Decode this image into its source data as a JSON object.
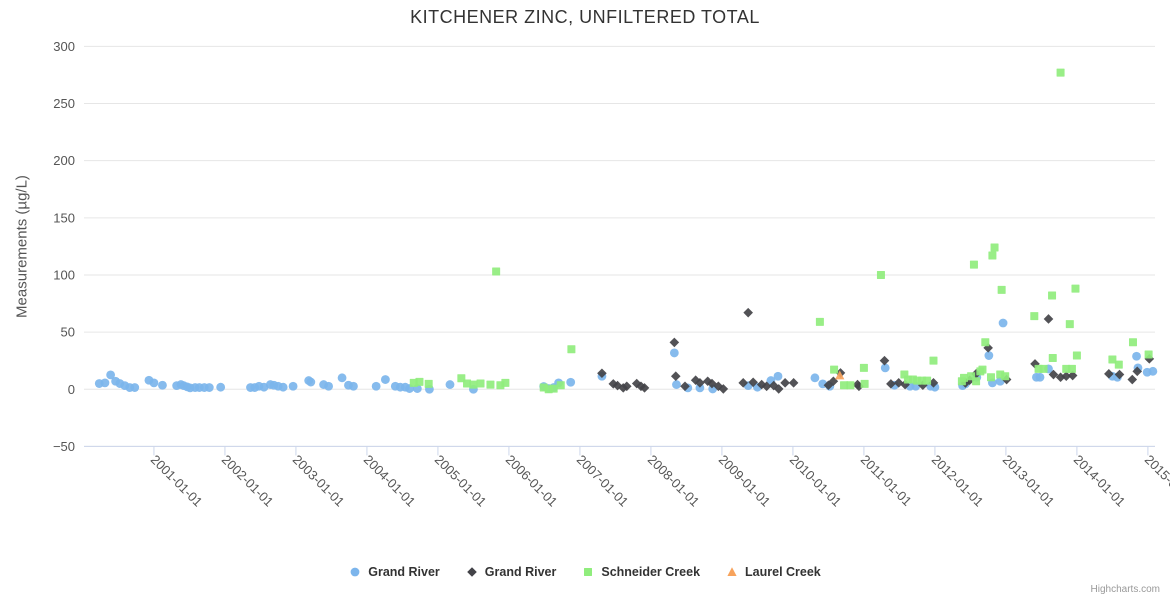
{
  "credits": "Highcharts.com",
  "chart_data": {
    "type": "scatter",
    "title": "KITCHENER ZINC, UNFILTERED TOTAL",
    "xlabel": "",
    "ylabel": "Measurements (µg/L)",
    "ylim": [
      -50,
      300
    ],
    "y_ticks": [
      -50,
      0,
      50,
      100,
      150,
      200,
      250,
      300
    ],
    "x_ticks": [
      "2001-01-01",
      "2002-01-01",
      "2003-01-01",
      "2004-01-01",
      "2005-01-01",
      "2006-01-01",
      "2007-01-01",
      "2008-01-01",
      "2009-01-01",
      "2010-01-01",
      "2011-01-01",
      "2012-01-01",
      "2013-01-01",
      "2014-01-01",
      "2015-01-01"
    ],
    "x_range_decimal_years": [
      2000.015,
      2015.1
    ],
    "grid": "horizontal-only",
    "legend_position": "bottom-center",
    "series": [
      {
        "name": "Grand River",
        "marker": "circle",
        "color": "#7cb5ec",
        "points": [
          [
            2000.23,
            5
          ],
          [
            2000.31,
            5.6
          ],
          [
            2000.39,
            12.6
          ],
          [
            2000.46,
            7
          ],
          [
            2000.52,
            5
          ],
          [
            2000.59,
            3.2
          ],
          [
            2000.66,
            1.5
          ],
          [
            2000.73,
            1.5
          ],
          [
            2000.93,
            7.9
          ],
          [
            2001.0,
            5.6
          ],
          [
            2001.12,
            3.5
          ],
          [
            2001.32,
            3.2
          ],
          [
            2001.38,
            4.1
          ],
          [
            2001.42,
            3.2
          ],
          [
            2001.47,
            2.1
          ],
          [
            2001.51,
            1.2
          ],
          [
            2001.58,
            1.5
          ],
          [
            2001.64,
            1.5
          ],
          [
            2001.71,
            1.5
          ],
          [
            2001.78,
            1.5
          ],
          [
            2001.94,
            1.8
          ],
          [
            2002.36,
            1.5
          ],
          [
            2002.42,
            1.5
          ],
          [
            2002.48,
            2.6
          ],
          [
            2002.55,
            1.8
          ],
          [
            2002.64,
            4.1
          ],
          [
            2002.69,
            3.5
          ],
          [
            2002.75,
            2.6
          ],
          [
            2002.82,
            1.8
          ],
          [
            2002.96,
            2.6
          ],
          [
            2003.18,
            7.6
          ],
          [
            2003.21,
            6.3
          ],
          [
            2003.39,
            4.1
          ],
          [
            2003.46,
            2.6
          ],
          [
            2003.65,
            10
          ],
          [
            2003.74,
            3.5
          ],
          [
            2003.81,
            2.6
          ],
          [
            2004.13,
            2.6
          ],
          [
            2004.26,
            8.5
          ],
          [
            2004.4,
            2.6
          ],
          [
            2004.47,
            1.8
          ],
          [
            2004.54,
            1.8
          ],
          [
            2004.6,
            0.6
          ],
          [
            2004.71,
            0.6
          ],
          [
            2004.88,
            0
          ],
          [
            2005.17,
            4.1
          ],
          [
            2005.5,
            0
          ],
          [
            2006.49,
            2.4
          ],
          [
            2006.56,
            0.6
          ],
          [
            2006.63,
            1.5
          ],
          [
            2006.7,
            5.6
          ],
          [
            2006.87,
            6.1
          ],
          [
            2007.31,
            11.4
          ],
          [
            2008.33,
            31.8
          ],
          [
            2008.36,
            4.1
          ],
          [
            2008.52,
            1.2
          ],
          [
            2008.69,
            1.2
          ],
          [
            2008.87,
            0.3
          ],
          [
            2009.37,
            3.2
          ],
          [
            2009.5,
            1.8
          ],
          [
            2009.69,
            7.6
          ],
          [
            2009.79,
            11.4
          ],
          [
            2010.31,
            10
          ],
          [
            2010.42,
            4.7
          ],
          [
            2010.52,
            2.6
          ],
          [
            2011.3,
            18.7
          ],
          [
            2011.43,
            3.5
          ],
          [
            2011.65,
            2.6
          ],
          [
            2011.73,
            2.6
          ],
          [
            2011.94,
            2.6
          ],
          [
            2012.0,
            1.8
          ],
          [
            2012.39,
            3.2
          ],
          [
            2012.43,
            4.7
          ],
          [
            2012.59,
            10.5
          ],
          [
            2012.76,
            29.5
          ],
          [
            2012.81,
            5.6
          ],
          [
            2012.92,
            7
          ],
          [
            2012.96,
            58
          ],
          [
            2013.43,
            10.5
          ],
          [
            2013.48,
            10.5
          ],
          [
            2013.6,
            17.8
          ],
          [
            2014.5,
            11.4
          ],
          [
            2014.57,
            10.5
          ],
          [
            2014.84,
            28.9
          ],
          [
            2014.86,
            18.7
          ],
          [
            2014.99,
            14.9
          ],
          [
            2015.07,
            15.7
          ]
        ]
      },
      {
        "name": "Grand River",
        "marker": "diamond",
        "color": "#434348",
        "points": [
          [
            2007.31,
            14
          ],
          [
            2007.47,
            4.7
          ],
          [
            2007.53,
            3.2
          ],
          [
            2007.61,
            1.2
          ],
          [
            2007.66,
            2.6
          ],
          [
            2007.8,
            5
          ],
          [
            2007.86,
            2.6
          ],
          [
            2007.91,
            1.2
          ],
          [
            2008.33,
            41
          ],
          [
            2008.35,
            11.4
          ],
          [
            2008.48,
            2.6
          ],
          [
            2008.63,
            7.9
          ],
          [
            2008.69,
            5.6
          ],
          [
            2008.8,
            7
          ],
          [
            2008.86,
            5
          ],
          [
            2008.95,
            2.6
          ],
          [
            2009.02,
            0.3
          ],
          [
            2009.3,
            5.6
          ],
          [
            2009.37,
            67
          ],
          [
            2009.44,
            6.1
          ],
          [
            2009.56,
            4.1
          ],
          [
            2009.63,
            2.6
          ],
          [
            2009.73,
            3.2
          ],
          [
            2009.8,
            0.3
          ],
          [
            2009.89,
            5.6
          ],
          [
            2010.01,
            5.6
          ],
          [
            2010.5,
            3.5
          ],
          [
            2010.57,
            7
          ],
          [
            2010.67,
            14.3
          ],
          [
            2010.91,
            4.1
          ],
          [
            2010.93,
            2.6
          ],
          [
            2011.29,
            25
          ],
          [
            2011.38,
            4.7
          ],
          [
            2011.49,
            5.6
          ],
          [
            2011.58,
            4.1
          ],
          [
            2011.83,
            3.5
          ],
          [
            2011.98,
            5.6
          ],
          [
            2012.43,
            5.5
          ],
          [
            2012.49,
            7.9
          ],
          [
            2012.58,
            13.5
          ],
          [
            2012.75,
            36.2
          ],
          [
            2013.01,
            8.5
          ],
          [
            2013.41,
            22.2
          ],
          [
            2013.6,
            61.5
          ],
          [
            2013.67,
            12.9
          ],
          [
            2013.77,
            10.5
          ],
          [
            2013.85,
            11.4
          ],
          [
            2013.94,
            12
          ],
          [
            2014.45,
            13.5
          ],
          [
            2014.6,
            12.9
          ],
          [
            2014.78,
            8.5
          ],
          [
            2014.85,
            15.7
          ],
          [
            2015.02,
            26.6
          ]
        ]
      },
      {
        "name": "Schneider Creek",
        "marker": "square",
        "color": "#90ed7d",
        "points": [
          [
            2004.66,
            5.6
          ],
          [
            2004.74,
            6.5
          ],
          [
            2004.87,
            4.7
          ],
          [
            2005.33,
            9.6
          ],
          [
            2005.41,
            5
          ],
          [
            2005.5,
            4.1
          ],
          [
            2005.6,
            5
          ],
          [
            2005.74,
            4.1
          ],
          [
            2005.82,
            103
          ],
          [
            2005.88,
            3.5
          ],
          [
            2005.95,
            5.6
          ],
          [
            2006.49,
            1.5
          ],
          [
            2006.56,
            0
          ],
          [
            2006.63,
            0.6
          ],
          [
            2006.73,
            3.5
          ],
          [
            2006.88,
            35
          ],
          [
            2010.38,
            59
          ],
          [
            2010.58,
            17.2
          ],
          [
            2010.72,
            3.5
          ],
          [
            2010.81,
            3.5
          ],
          [
            2011.0,
            18.7
          ],
          [
            2011.01,
            4.7
          ],
          [
            2011.24,
            100
          ],
          [
            2011.57,
            12.9
          ],
          [
            2011.62,
            8.5
          ],
          [
            2011.69,
            8.5
          ],
          [
            2011.75,
            7.6
          ],
          [
            2011.82,
            7.6
          ],
          [
            2011.89,
            7.6
          ],
          [
            2011.98,
            25.1
          ],
          [
            2012.38,
            7
          ],
          [
            2012.41,
            10
          ],
          [
            2012.51,
            11.4
          ],
          [
            2012.55,
            109
          ],
          [
            2012.58,
            7
          ],
          [
            2012.64,
            15.7
          ],
          [
            2012.67,
            17.2
          ],
          [
            2012.71,
            41.1
          ],
          [
            2012.79,
            10.5
          ],
          [
            2012.81,
            117
          ],
          [
            2012.84,
            124
          ],
          [
            2012.92,
            12.9
          ],
          [
            2012.94,
            87
          ],
          [
            2012.99,
            11.4
          ],
          [
            2013.4,
            64
          ],
          [
            2013.46,
            17.8
          ],
          [
            2013.53,
            17.8
          ],
          [
            2013.65,
            82
          ],
          [
            2013.66,
            27.4
          ],
          [
            2013.77,
            277
          ],
          [
            2013.85,
            17.8
          ],
          [
            2013.9,
            57
          ],
          [
            2013.93,
            17.8
          ],
          [
            2013.98,
            88
          ],
          [
            2014.0,
            29.5
          ],
          [
            2014.5,
            26
          ],
          [
            2014.59,
            21.6
          ],
          [
            2014.79,
            41.1
          ],
          [
            2015.01,
            30.4
          ]
        ]
      },
      {
        "name": "Laurel Creek",
        "marker": "triangle",
        "color": "#f7a35c",
        "points": [
          [
            2010.66,
            12.2
          ]
        ]
      }
    ]
  }
}
